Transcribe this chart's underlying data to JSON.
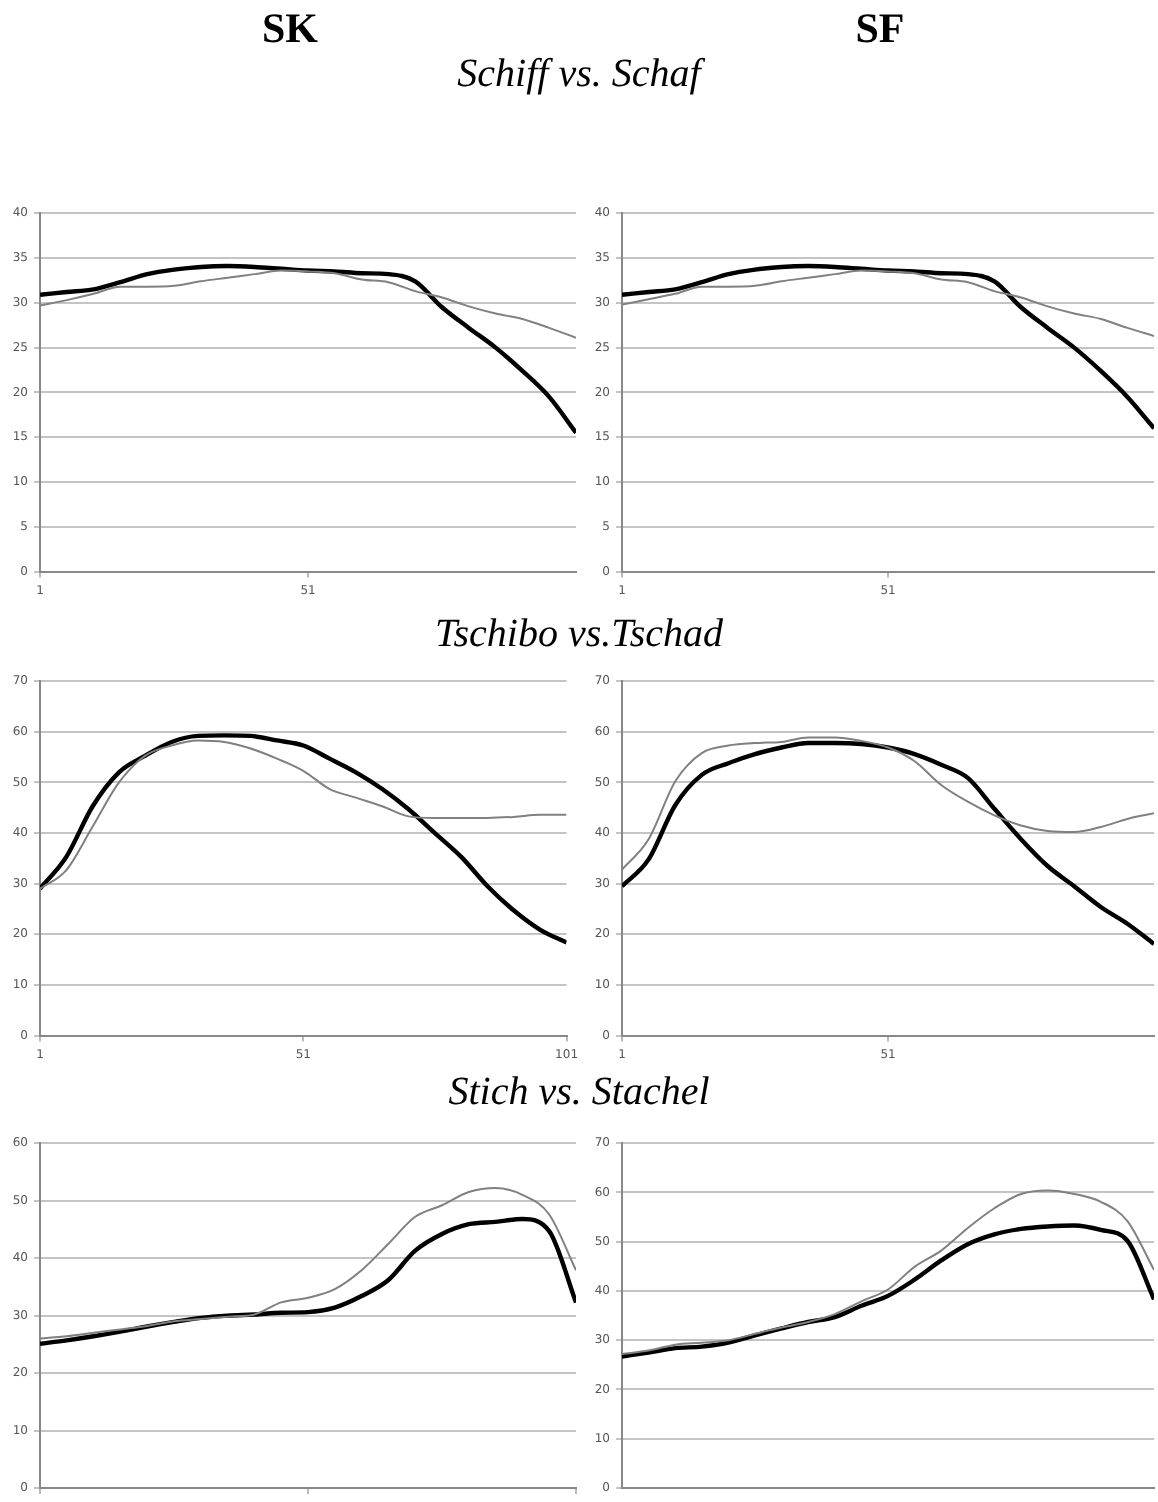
{
  "chart_data": [
    {
      "type": "line",
      "title": "SK",
      "subtitle": "Schiff vs. Schaf",
      "x": [
        1,
        6,
        11,
        16,
        21,
        26,
        31,
        36,
        41,
        46,
        51,
        56,
        61,
        66,
        71,
        76,
        81,
        86,
        91,
        96,
        101
      ],
      "xlim": [
        1,
        101
      ],
      "xticks": [
        1,
        51
      ],
      "ylim": [
        0,
        40
      ],
      "yticks": [
        0,
        5,
        10,
        15,
        20,
        25,
        30,
        35,
        40
      ],
      "grid": "y",
      "series": [
        {
          "color": "#808080",
          "values": [
            29.7,
            30.3,
            31.0,
            31.8,
            31.8,
            31.9,
            32.4,
            32.8,
            33.2,
            33.6,
            33.5,
            33.3,
            32.6,
            32.3,
            31.3,
            30.6,
            29.6,
            28.8,
            28.2,
            27.2,
            26.1
          ]
        },
        {
          "color": "#000000",
          "values": [
            30.9,
            31.2,
            31.5,
            32.3,
            33.2,
            33.7,
            34.0,
            34.1,
            34.0,
            33.8,
            33.6,
            33.5,
            33.3,
            33.2,
            32.4,
            29.5,
            27.2,
            25.0,
            22.4,
            19.5,
            15.5
          ]
        }
      ]
    },
    {
      "type": "line",
      "title": "SF",
      "x": [
        1,
        6,
        11,
        16,
        21,
        26,
        31,
        36,
        41,
        46,
        51,
        56,
        61,
        66,
        71,
        76,
        81,
        86,
        91,
        96,
        101
      ],
      "xlim": [
        1,
        101
      ],
      "xticks": [
        1,
        51
      ],
      "ylim": [
        0,
        40
      ],
      "yticks": [
        0,
        5,
        10,
        15,
        20,
        25,
        30,
        35,
        40
      ],
      "grid": "y",
      "series": [
        {
          "color": "#808080",
          "values": [
            29.8,
            30.4,
            31.0,
            31.8,
            31.8,
            31.9,
            32.4,
            32.8,
            33.2,
            33.6,
            33.5,
            33.3,
            32.6,
            32.3,
            31.3,
            30.6,
            29.6,
            28.8,
            28.2,
            27.2,
            26.3
          ]
        },
        {
          "color": "#000000",
          "values": [
            30.9,
            31.2,
            31.5,
            32.3,
            33.2,
            33.7,
            34.0,
            34.1,
            34.0,
            33.8,
            33.6,
            33.5,
            33.3,
            33.2,
            32.4,
            29.5,
            27.2,
            25.0,
            22.4,
            19.5,
            16.0
          ]
        }
      ]
    },
    {
      "type": "line",
      "title": "Tschibo vs.Tschad",
      "x": [
        1,
        6,
        11,
        16,
        21,
        26,
        31,
        36,
        41,
        46,
        51,
        56,
        61,
        66,
        71,
        76,
        81,
        86,
        91,
        96,
        101
      ],
      "xlim": [
        1,
        101
      ],
      "xticks": [
        1,
        51,
        101
      ],
      "ylim": [
        0,
        70
      ],
      "yticks": [
        0,
        10,
        20,
        30,
        40,
        50,
        60,
        70
      ],
      "grid": "y",
      "series": [
        {
          "color": "#808080",
          "values": [
            29.0,
            32.7,
            41.3,
            50.0,
            55.3,
            57.3,
            58.3,
            58.0,
            56.7,
            54.7,
            52.3,
            48.7,
            47.0,
            45.3,
            43.3,
            43.0,
            43.0,
            43.0,
            43.2,
            43.6,
            43.6
          ]
        },
        {
          "color": "#000000",
          "values": [
            29.0,
            35.3,
            45.3,
            52.0,
            55.3,
            58.0,
            59.2,
            59.3,
            59.2,
            58.3,
            57.3,
            54.7,
            52.0,
            48.7,
            44.7,
            40.0,
            35.3,
            29.5,
            24.7,
            20.9,
            18.4
          ]
        }
      ]
    },
    {
      "type": "line",
      "x": [
        1,
        6,
        11,
        16,
        21,
        26,
        31,
        36,
        41,
        46,
        51,
        56,
        61,
        66,
        71,
        76,
        81,
        86,
        91,
        96,
        101
      ],
      "xlim": [
        1,
        101
      ],
      "xticks": [
        1,
        51
      ],
      "ylim": [
        0,
        70
      ],
      "yticks": [
        0,
        10,
        20,
        30,
        40,
        50,
        60,
        70
      ],
      "grid": "y",
      "series": [
        {
          "color": "#808080",
          "values": [
            32.8,
            38.8,
            50.2,
            55.8,
            57.3,
            57.8,
            58.0,
            58.9,
            58.9,
            58.2,
            56.9,
            54.2,
            49.5,
            46.2,
            43.5,
            41.5,
            40.4,
            40.2,
            41.2,
            42.8,
            43.9
          ]
        },
        {
          "color": "#000000",
          "values": [
            29.5,
            34.8,
            45.5,
            51.5,
            53.8,
            55.6,
            56.9,
            57.8,
            57.8,
            57.6,
            56.9,
            55.6,
            53.5,
            50.9,
            44.8,
            38.8,
            33.5,
            29.5,
            25.4,
            22.1,
            18.1
          ]
        }
      ]
    },
    {
      "type": "line",
      "title": "Stich vs. Stachel",
      "x": [
        1,
        6,
        11,
        16,
        21,
        26,
        31,
        36,
        41,
        46,
        51,
        56,
        61,
        66,
        71,
        76,
        81,
        86,
        91,
        96,
        101
      ],
      "xlim": [
        1,
        101
      ],
      "xticks": [
        1,
        51,
        101
      ],
      "ylim": [
        0,
        60
      ],
      "yticks": [
        0,
        10,
        20,
        30,
        40,
        50,
        60
      ],
      "grid": "y",
      "tick_labels": "y",
      "series": [
        {
          "color": "#808080",
          "values": [
            26.0,
            26.4,
            27.0,
            27.6,
            28.2,
            29.0,
            29.4,
            29.8,
            30.2,
            32.3,
            33.1,
            34.6,
            37.9,
            42.5,
            47.2,
            49.2,
            51.5,
            52.2,
            51.0,
            47.6,
            37.9
          ]
        },
        {
          "color": "#000000",
          "values": [
            25.1,
            25.7,
            26.4,
            27.2,
            28.1,
            28.9,
            29.6,
            30.0,
            30.2,
            30.5,
            30.6,
            31.4,
            33.4,
            36.2,
            41.3,
            44.2,
            45.9,
            46.3,
            46.8,
            44.7,
            32.3
          ]
        }
      ]
    },
    {
      "type": "line",
      "x": [
        1,
        6,
        11,
        16,
        21,
        26,
        31,
        36,
        41,
        46,
        51,
        56,
        61,
        66,
        71,
        76,
        81,
        86,
        91,
        96,
        101
      ],
      "xlim": [
        1,
        101
      ],
      "ylim": [
        0,
        70
      ],
      "yticks": [
        0,
        10,
        20,
        30,
        40,
        50,
        60,
        70
      ],
      "grid": "y",
      "tick_labels": "y",
      "series": [
        {
          "color": "#808080",
          "values": [
            27.2,
            27.9,
            29.1,
            29.5,
            30.0,
            31.3,
            32.6,
            33.7,
            35.3,
            37.9,
            40.3,
            44.9,
            48.2,
            52.8,
            56.8,
            59.7,
            60.4,
            59.7,
            58.1,
            54.2,
            44.3
          ]
        },
        {
          "color": "#000000",
          "values": [
            26.7,
            27.5,
            28.4,
            28.7,
            29.5,
            31.0,
            32.4,
            33.7,
            34.7,
            37.0,
            39.0,
            42.3,
            46.2,
            49.5,
            51.5,
            52.6,
            53.1,
            53.3,
            52.4,
            50.2,
            38.3
          ]
        }
      ]
    }
  ]
}
